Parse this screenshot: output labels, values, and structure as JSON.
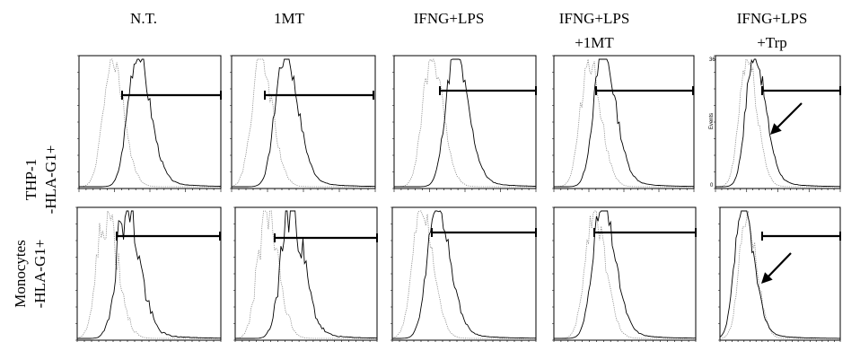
{
  "figure": {
    "columns": [
      {
        "line1": "N.T.",
        "line2": ""
      },
      {
        "line1": "1MT",
        "line2": ""
      },
      {
        "line1": "IFNG+LPS",
        "line2": ""
      },
      {
        "line1": "IFNG+LPS",
        "line2": "+1MT"
      },
      {
        "line1": "IFNG+LPS",
        "line2": "+Trp"
      }
    ],
    "rows": [
      {
        "line1": "THP-1",
        "line2": "-HLA-G1+"
      },
      {
        "line1": "Monocytes",
        "line2": "-HLA-G1+"
      }
    ],
    "axis_annotations": {
      "y_top": "36",
      "y_bottom": "0",
      "y_label": "Events"
    },
    "colors": {
      "sample_line": "#000000",
      "control_line": "#888888",
      "frame": "#000000"
    }
  }
}
